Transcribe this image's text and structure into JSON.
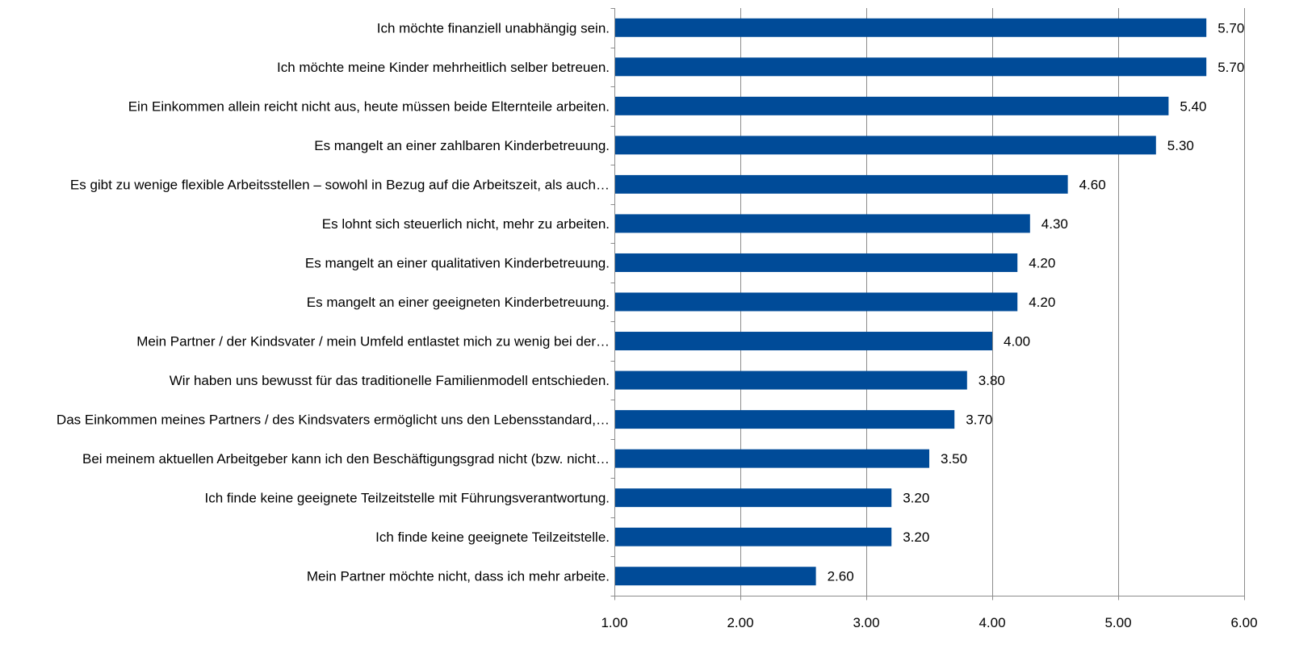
{
  "chart_data": {
    "type": "bar",
    "orientation": "horizontal",
    "categories": [
      "Ich möchte finanziell unabhängig sein.",
      "Ich möchte meine Kinder mehrheitlich selber betreuen.",
      "Ein Einkommen allein reicht nicht aus, heute müssen beide Elternteile arbeiten.",
      "Es mangelt an einer zahlbaren Kinderbetreuung.",
      "Es gibt zu wenige flexible Arbeitsstellen – sowohl in Bezug auf die Arbeitszeit, als auch…",
      "Es lohnt sich steuerlich nicht, mehr zu arbeiten.",
      "Es mangelt an einer qualitativen Kinderbetreuung.",
      "Es mangelt an einer geeigneten Kinderbetreuung.",
      "Mein Partner / der Kindsvater / mein Umfeld entlastet mich zu wenig bei der…",
      "Wir haben uns bewusst für das traditionelle Familienmodell entschieden.",
      "Das Einkommen meines Partners / des Kindsvaters ermöglicht uns den Lebensstandard,…",
      "Bei meinem aktuellen Arbeitgeber kann ich den Beschäftigungsgrad nicht (bzw. nicht…",
      "Ich finde keine geeignete Teilzeitstelle mit Führungsverantwortung.",
      "Ich finde keine geeignete Teilzeitstelle.",
      "Mein Partner möchte nicht, dass ich mehr arbeite."
    ],
    "values": [
      5.7,
      5.7,
      5.4,
      5.3,
      4.6,
      4.3,
      4.2,
      4.2,
      4.0,
      3.8,
      3.7,
      3.5,
      3.2,
      3.2,
      2.6
    ],
    "value_labels": [
      "5.70",
      "5.70",
      "5.40",
      "5.30",
      "4.60",
      "4.30",
      "4.20",
      "4.20",
      "4.00",
      "3.80",
      "3.70",
      "3.50",
      "3.20",
      "3.20",
      "2.60"
    ],
    "x_ticks": [
      1,
      2,
      3,
      4,
      5,
      6
    ],
    "x_tick_labels": [
      "1.00",
      "2.00",
      "3.00",
      "4.00",
      "5.00",
      "6.00"
    ],
    "xlim": [
      1,
      6
    ],
    "title": "",
    "xlabel": "",
    "ylabel": "",
    "grid": "vertical",
    "legend": "none",
    "colors": {
      "bar": "#004b98",
      "grid": "#8c8c8c",
      "axis": "#8c8c8c",
      "text": "#000000"
    }
  }
}
